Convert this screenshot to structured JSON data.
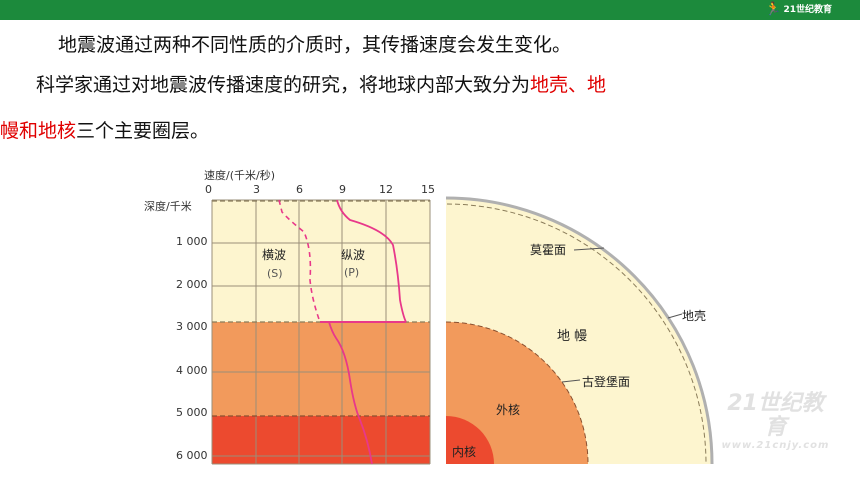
{
  "header": {
    "logo_text": "21世纪教育",
    "logo_icon": "runner-icon"
  },
  "text": {
    "para1": "地震波通过两种不同性质的介质时，其传播速度会发生变化。",
    "para2_before": "科学家通过对地震波传播速度的研究，将地球内部大致分为",
    "para2_highlight": "地壳、地",
    "para3_highlight": "幔和地核",
    "para3_after": "三个主要圈层。"
  },
  "figure": {
    "speed_axis_label": "速度/(千米/秒)",
    "speed_ticks": [
      "0",
      "3",
      "6",
      "9",
      "12",
      "15"
    ],
    "depth_axis_label": "深度/千米",
    "depth_ticks": [
      "1 000",
      "2 000",
      "3 000",
      "4 000",
      "5 000",
      "6 000"
    ],
    "s_wave_label": "横波",
    "s_wave_symbol": "(S)",
    "p_wave_label": "纵波",
    "p_wave_symbol": "(P)",
    "layers": {
      "moho": "莫霍面",
      "crust": "地壳",
      "mantle": "地  幔",
      "gutenberg": "古登堡面",
      "outer_core": "外核",
      "inner_core": "内核"
    },
    "colors": {
      "mantle": "#fdf5cf",
      "outer_core": "#f29a5c",
      "inner_core": "#ec4a2f",
      "p_wave": "#e8388a",
      "s_wave": "#e8388a"
    }
  },
  "watermark": {
    "main": "21世纪教育",
    "sub": "www.21cnjy.com"
  }
}
